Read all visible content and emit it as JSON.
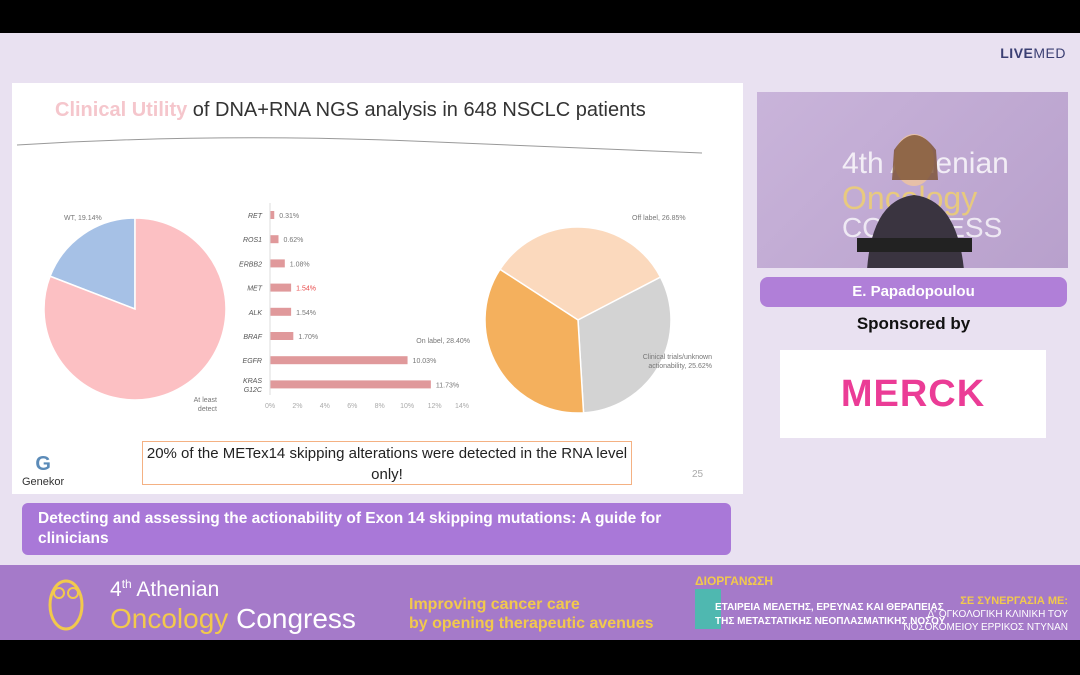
{
  "brand": {
    "live": "LIVE",
    "med": "MED"
  },
  "slide": {
    "title_highlight": "Clinical Utility",
    "title_rest": " of DNA+RNA NGS analysis in 648 NSCLC patients",
    "note": "20% of the METex14 skipping alterations were detected in the RNA level only!",
    "logo": "Genekor",
    "page": "25"
  },
  "chart_data": [
    {
      "type": "pie",
      "slices": [
        {
          "label": "WT, 19.14%",
          "value": 19.14,
          "color": "#a6c1e6"
        },
        {
          "label": "At least detect",
          "value": 80.86,
          "color": "#fcc0c3"
        }
      ]
    },
    {
      "type": "bar",
      "orientation": "horizontal",
      "categories": [
        "RET",
        "ROS1",
        "ERBB2",
        "MET",
        "ALK",
        "BRAF",
        "EGFR",
        "KRAS G12C"
      ],
      "values": [
        0.31,
        0.62,
        1.08,
        1.54,
        1.54,
        1.7,
        10.03,
        11.73
      ],
      "labels": [
        "0.31%",
        "0.62%",
        "1.08%",
        "1.54%",
        "1.54%",
        "1.70%",
        "10.03%",
        "11.73%"
      ],
      "highlight": "MET",
      "highlight_color": "#e84a4a",
      "bar_color": "#e0999b",
      "xlim": [
        0,
        14
      ],
      "xticks": [
        "0%",
        "2%",
        "4%",
        "6%",
        "8%",
        "10%",
        "12%",
        "14%"
      ]
    },
    {
      "type": "pie",
      "slices": [
        {
          "label": "Off label, 26.85%",
          "value": 26.85,
          "color": "#fbd9bd"
        },
        {
          "label": "Clinical trials/unknown actionability, 25.62%",
          "value": 25.62,
          "color": "#d3d3d3"
        },
        {
          "label": "On label, 28.40%",
          "value": 28.4,
          "color": "#f4b05d"
        }
      ]
    }
  ],
  "video": {
    "l1": "4th Athenian",
    "l2": "Oncology",
    "l3": "CONGRESS"
  },
  "speaker": "E. Papadopoulou",
  "sponsored_by": "Sponsored by",
  "sponsor": "MERCK",
  "talk_title": "Detecting and assessing the actionability of Exon 14 skipping mutations: A guide for clinicians",
  "banner": {
    "num": "4",
    "sup": "th",
    "athenian": "Athenian",
    "oncology": "Oncology",
    "congress": "Congress",
    "tagline1": "Improving cancer care",
    "tagline2": "by opening therapeutic avenues",
    "org_label": "ΔΙΟΡΓΑΝΩΣΗ",
    "org1": "ΕΤΑΙΡΕΙΑ ΜΕΛΕΤΗΣ, ΕΡΕΥΝΑΣ ΚΑΙ ΘΕΡΑΠΕΙΑΣ",
    "org2": "ΤΗΣ ΜΕΤΑΣΤΑΤΙΚΗΣ ΝΕΟΠΛΑΣΜΑΤΙΚΗΣ ΝΟΣΟΥ",
    "coop_label": "ΣΕ ΣΥΝΕΡΓΑΣΙΑ ΜΕ:",
    "coop1": "Δ' ΟΓΚΟΛΟΓΙΚΗ ΚΛΙΝΙΚΗ ΤΟΥ",
    "coop2": "ΝΟΣΟΚΟΜΕΙΟΥ ΕΡΡΙΚΟΣ ΝΤΥΝΑΝ"
  }
}
